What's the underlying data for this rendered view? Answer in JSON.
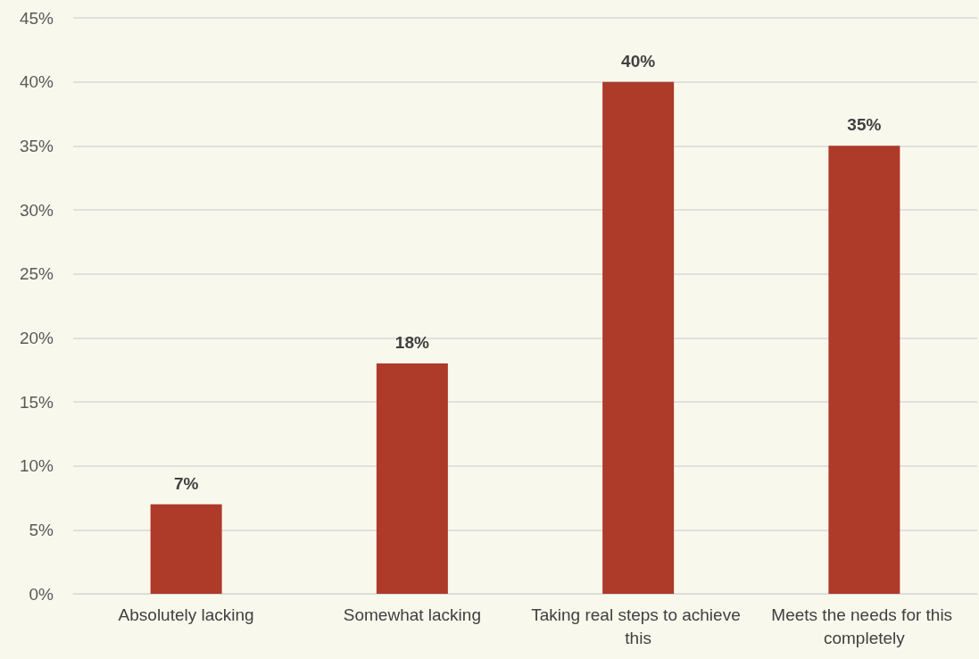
{
  "chart_data": {
    "type": "bar",
    "categories": [
      "Absolutely lacking",
      "Somewhat lacking",
      "Taking real steps to achieve this",
      "Meets the needs for this completely"
    ],
    "values": [
      7,
      18,
      40,
      35
    ],
    "value_labels": [
      "7%",
      "18%",
      "40%",
      "35%"
    ],
    "color": "#ae3a29",
    "ylim": [
      0,
      45
    ],
    "yticks": [
      {
        "value": 0,
        "label": "0%"
      },
      {
        "value": 5,
        "label": "5%"
      },
      {
        "value": 10,
        "label": "10%"
      },
      {
        "value": 15,
        "label": "15%"
      },
      {
        "value": 20,
        "label": "20%"
      },
      {
        "value": 25,
        "label": "25%"
      },
      {
        "value": 30,
        "label": "30%"
      },
      {
        "value": 35,
        "label": "35%"
      },
      {
        "value": 40,
        "label": "40%"
      },
      {
        "value": 45,
        "label": "45%"
      }
    ],
    "grid": "y"
  }
}
